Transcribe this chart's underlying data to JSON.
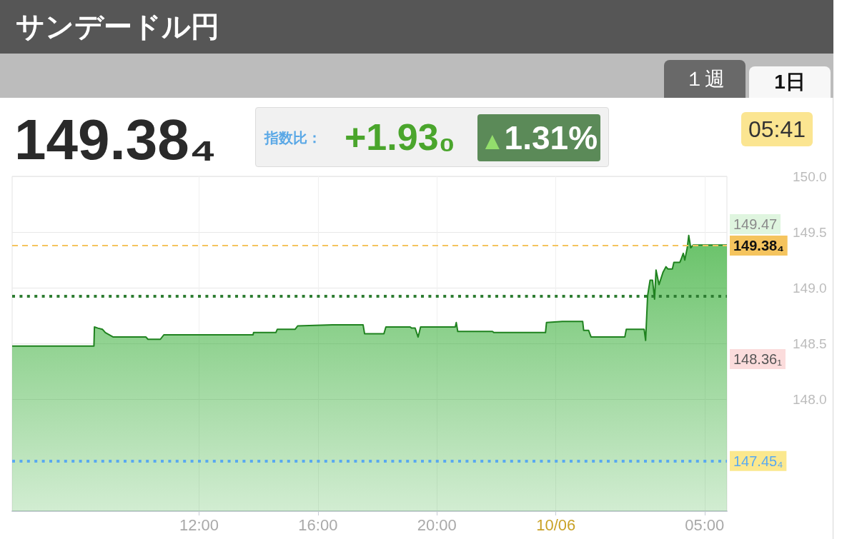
{
  "chart_data": {
    "type": "area",
    "title": "サンデードル円",
    "annotations": [
      "１週",
      "1日",
      "149.38₄",
      "指数比：",
      "+1.93₀",
      "▲1.31%",
      "05:41",
      "149.47",
      "148.36₁"
    ],
    "x": [
      "--10-05T05:43",
      "--10-05T08:28",
      "--10-05T08:29",
      "--10-05T08:36",
      "--10-05T08:45",
      "--10-05T08:51",
      "--10-05T09:07",
      "--10-05T10:13",
      "--10-05T10:17",
      "--10-05T10:42",
      "--10-05T10:49",
      "--10-05T13:49",
      "--10-05T13:50",
      "--10-05T14:35",
      "--10-05T14:38",
      "--10-05T15:14",
      "--10-05T15:19",
      "--10-05T16:29",
      "--10-05T17:31",
      "--10-05T17:34",
      "--10-05T18:13",
      "--10-05T18:17",
      "--10-05T19:06",
      "--10-05T19:09",
      "--10-05T19:16",
      "--10-05T19:22",
      "--10-05T19:27",
      "--10-05T20:37",
      "--10-05T20:39",
      "--10-05T20:42",
      "--10-05T21:52",
      "--10-05T21:55",
      "--10-05T23:39",
      "--10-05T23:41",
      "--10-06T00:13",
      "--10-06T00:54",
      "--10-06T00:56",
      "--10-06T01:06",
      "--10-06T01:11",
      "--10-06T02:19",
      "--10-06T02:22",
      "--10-06T02:58",
      "--10-06T03:01",
      "--10-06T03:05",
      "--10-06T03:10",
      "--10-06T03:15",
      "--10-06T03:19",
      "--10-06T03:22",
      "--10-06T03:28",
      "--10-06T03:36",
      "--10-06T03:42",
      "--10-06T03:46",
      "--10-06T03:55",
      "--10-06T03:58",
      "--10-06T04:10",
      "--10-06T04:12",
      "--10-06T04:17",
      "--10-06T04:20",
      "--10-06T04:25",
      "--10-06T04:28",
      "--10-06T04:32",
      "--10-06T04:37",
      "--10-06T05:45"
    ],
    "series": [
      {
        "color": "#1f821f",
        "values": [
          148.48,
          148.48,
          148.65,
          148.64,
          148.63,
          148.6,
          148.56,
          148.56,
          148.54,
          148.54,
          148.58,
          148.58,
          148.6,
          148.6,
          148.63,
          148.63,
          148.66,
          148.67,
          148.67,
          148.59,
          148.59,
          148.65,
          148.65,
          148.64,
          148.64,
          148.56,
          148.65,
          148.65,
          148.69,
          148.61,
          148.61,
          148.6,
          148.6,
          148.69,
          148.7,
          148.7,
          148.62,
          148.62,
          148.56,
          148.56,
          148.63,
          148.63,
          148.53,
          148.93,
          149.07,
          149.07,
          148.9,
          149.16,
          149.03,
          149.14,
          149.19,
          149.17,
          149.17,
          149.23,
          149.23,
          149.25,
          149.31,
          149.25,
          149.36,
          149.47,
          149.36,
          149.384,
          149.384
        ]
      }
    ],
    "xlim": [
      "--10-05T05:43",
      "--10-06T05:45"
    ],
    "xticks": [
      {
        "value": "--10-05T12:00",
        "label": "12:00"
      },
      {
        "value": "--10-05T16:00",
        "label": "16:00"
      },
      {
        "value": "--10-05T20:00",
        "label": "20:00"
      },
      {
        "value": "--10-06T00:00",
        "label": "10/06"
      },
      {
        "value": "--10-06T05:00",
        "label": "05:00"
      }
    ],
    "ylim": [
      147,
      150
    ],
    "yticks": [
      {
        "value": 148,
        "label": "148.0"
      },
      148.5,
      {
        "value": 149,
        "label": "149.0"
      },
      149.5,
      {
        "value": 150,
        "label": "150.0"
      }
    ],
    "ref_lines": [
      {
        "axis": "y",
        "value": 149.384,
        "label": "149.38₄",
        "color": "#f5c45e",
        "line_style": "dashed"
      },
      {
        "axis": "y",
        "value": 148.93,
        "color": "#2e7d32",
        "line_style": "dotted"
      },
      {
        "axis": "y",
        "value": 147.454,
        "label": "147.45₄",
        "color": "#5aa9f0",
        "line_style": "dotted"
      }
    ],
    "grid": true,
    "marker": "none"
  }
}
